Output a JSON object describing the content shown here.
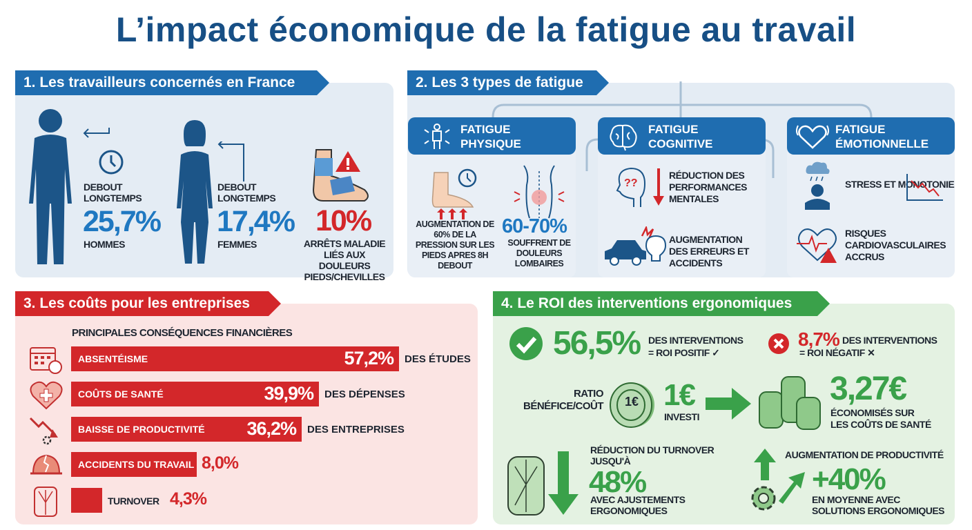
{
  "title": "L’impact économique de la fatigue au travail",
  "colors": {
    "title": "#174f85",
    "blue": "#1f6db0",
    "red": "#d3272a",
    "green": "#3aa14a"
  },
  "section1": {
    "header": "1. Les travailleurs concernés en France",
    "men": {
      "label": "DEBOUT LONGTEMPS",
      "value": "25,7%",
      "group": "HOMMES",
      "icon": "clock-icon"
    },
    "women": {
      "label": "DEBOUT LONGTEMPS",
      "value": "17,4%",
      "group": "FEMMES"
    },
    "feet": {
      "value": "10%",
      "label": "ARRÊTS MALADIE LIÉS AUX DOULEURS PIEDS/CHEVILLES",
      "icon": "bandaged-foot-icon"
    }
  },
  "section2": {
    "header": "2. Les 3 types de fatigue",
    "physique": {
      "title1": "FATIGUE",
      "title2": "PHYSIQUE",
      "pressure": "AUGMENTATION DE 60% DE LA PRESSION SUR LES PIEDS APRES 8H DEBOUT",
      "back_value": "60-70%",
      "back_label": "SOUFFRENT DE DOULEURS LOMBAIRES"
    },
    "cognitive": {
      "title1": "FATIGUE",
      "title2": "COGNITIVE",
      "item1": "RÉDUCTION DES PERFORMANCES MENTALES",
      "item2": "AUGMENTATION DES ERREURS ET ACCIDENTS"
    },
    "emotionnelle": {
      "title1": "FATIGUE",
      "title2": "ÉMOTIONNELLE",
      "item1": "STRESS ET MONOTONIE",
      "item2": "RISQUES CARDIOVASCULAIRES ACCRUS"
    }
  },
  "section3": {
    "header": "3. Les coûts pour les entreprises",
    "subtitle": "PRINCIPALES CONSÉQUENCES FINANCIÈRES",
    "bars": [
      {
        "label": "ABSENTÉISME",
        "value": 57.2,
        "display": "57,2%",
        "note": "DES ÉTUDES",
        "icon": "calendar-icon"
      },
      {
        "label": "COÛTS DE SANTÉ",
        "value": 39.9,
        "display": "39,9%",
        "note": "DES DÉPENSES",
        "icon": "heart-cross-icon"
      },
      {
        "label": "BAISSE DE PRODUCTIVITÉ",
        "value": 36.2,
        "display": "36,2%",
        "note": "DES ENTREPRISES",
        "icon": "trend-down-gear-icon"
      },
      {
        "label": "ACCIDENTS DU TRAVAIL",
        "value": 8.0,
        "display": "8,0%",
        "note": "",
        "icon": "broken-helmet-icon"
      },
      {
        "label": "TURNOVER",
        "value": 4.3,
        "display": "4,3%",
        "note": "",
        "icon": "revolving-door-icon"
      }
    ]
  },
  "section4": {
    "header": "4. Le ROI des interventions ergonomiques",
    "positive": {
      "value": "56,5%",
      "line1": "DES INTERVENTIONS",
      "line2": "= ROI POSITIF ✓"
    },
    "negative": {
      "value": "8,7%",
      "line1": "DES INTERVENTIONS",
      "line2": "= ROI NÉGATIF ✕"
    },
    "ratio": {
      "label1": "RATIO",
      "label2": "BÉNÉFICE/COÛT",
      "coin": "1€",
      "invest_value": "1€",
      "invest_label": "INVESTI",
      "saved_value": "3,27€",
      "saved_label1": "ÉCONOMISÉS SUR",
      "saved_label2": "LES COÛTS DE SANTÉ"
    },
    "turnover": {
      "label1": "RÉDUCTION DU TURNOVER",
      "label2": "JUSQU'À",
      "value": "48%",
      "note1": "AVEC AJUSTEMENTS",
      "note2": "ERGONOMIQUES"
    },
    "productivity": {
      "label": "AUGMENTATION DE PRODUCTIVITÉ",
      "value": "+40%",
      "note1": "EN MOYENNE AVEC",
      "note2": "SOLUTIONS ERGONOMIQUES"
    }
  }
}
